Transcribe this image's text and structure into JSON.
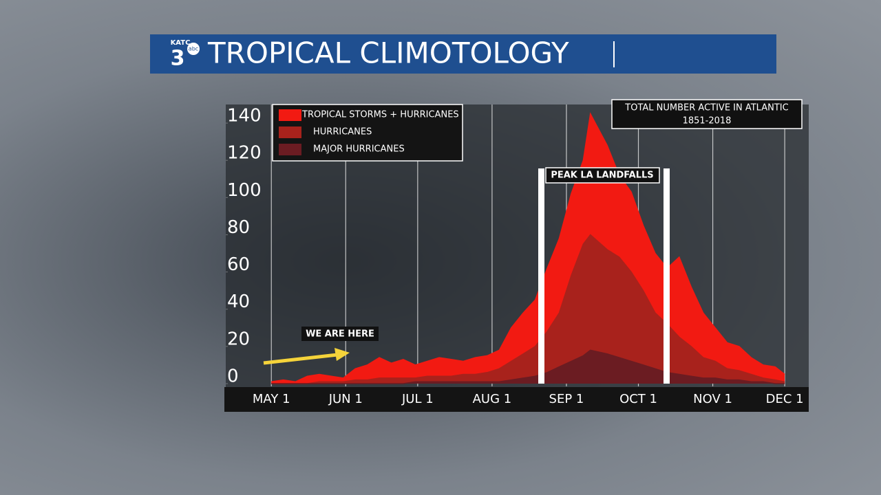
{
  "logo": {
    "callsign": "KATC",
    "channel": "3",
    "network": "abc"
  },
  "chart_data": {
    "type": "area",
    "title": "TROPICAL CLIMOTOLOGY",
    "note": [
      "TOTAL NUMBER ACTIVE IN ATLANTIC",
      "1851-2018"
    ],
    "peak_label": "PEAK LA LANDFALLS",
    "marker_label": "WE ARE HERE",
    "x": [
      0,
      5,
      10,
      15,
      20,
      25,
      30,
      35,
      40,
      45,
      50,
      55,
      60,
      65,
      70,
      75,
      80,
      85,
      90,
      95,
      100,
      105,
      110,
      115,
      120,
      125,
      130,
      133,
      140,
      145,
      150,
      155,
      160,
      165,
      170,
      175,
      180,
      185,
      190,
      195,
      200,
      205,
      210,
      214
    ],
    "series": [
      {
        "name": "TROPICAL STORMS + HURRICANES",
        "color": "#f21a12",
        "values": [
          1,
          2,
          1,
          4,
          5,
          4,
          3,
          8,
          10,
          14,
          11,
          13,
          10,
          12,
          14,
          13,
          12,
          14,
          15,
          18,
          30,
          38,
          45,
          62,
          78,
          102,
          120,
          145,
          128,
          112,
          103,
          85,
          70,
          62,
          68,
          52,
          38,
          30,
          22,
          20,
          14,
          10,
          9,
          5
        ]
      },
      {
        "name": "HURRICANES",
        "color": "#a8221c",
        "values": [
          0,
          0,
          0,
          0,
          1,
          1,
          1,
          2,
          2,
          3,
          3,
          3,
          3,
          4,
          4,
          4,
          5,
          5,
          6,
          8,
          12,
          16,
          20,
          28,
          38,
          58,
          75,
          80,
          72,
          68,
          60,
          50,
          38,
          32,
          25,
          20,
          14,
          12,
          8,
          7,
          5,
          3,
          2,
          1
        ]
      },
      {
        "name": "MAJOR HURRICANES",
        "color": "#6b1c22",
        "values": [
          0,
          0,
          0,
          0,
          0,
          0,
          0,
          0,
          0,
          0,
          0,
          0,
          1,
          1,
          1,
          1,
          1,
          1,
          1,
          1,
          2,
          3,
          4,
          6,
          9,
          12,
          15,
          18,
          16,
          14,
          12,
          10,
          8,
          6,
          5,
          4,
          3,
          3,
          2,
          2,
          1,
          1,
          0,
          0
        ]
      }
    ],
    "xlim": [
      -19,
      224
    ],
    "xticks": [
      {
        "value": 0,
        "label": "MAY 1"
      },
      {
        "value": 31,
        "label": "JUN 1"
      },
      {
        "value": 61,
        "label": "JUL 1"
      },
      {
        "value": 92,
        "label": "AUG 1"
      },
      {
        "value": 123,
        "label": "SEP 1"
      },
      {
        "value": 153,
        "label": "OCT 1"
      },
      {
        "value": 184,
        "label": "NOV 1"
      },
      {
        "value": 214,
        "label": "DEC 1"
      }
    ],
    "ylim": [
      0,
      150
    ],
    "yticks": [
      0,
      20,
      40,
      60,
      80,
      100,
      120,
      140
    ],
    "grid": true
  }
}
